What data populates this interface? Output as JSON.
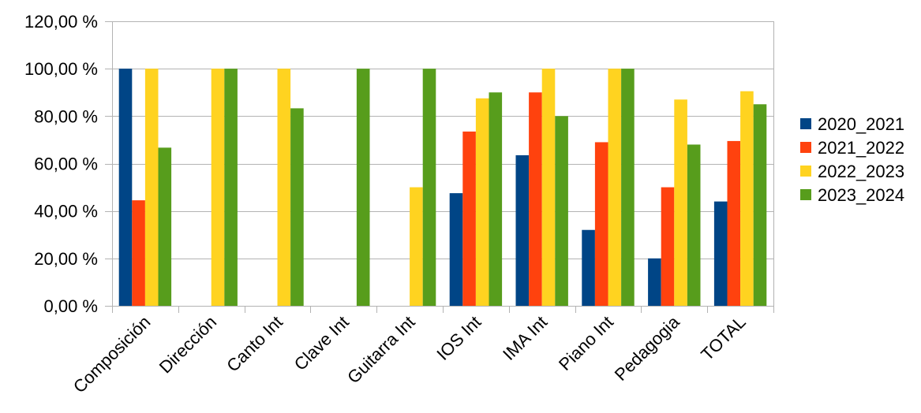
{
  "chart_data": {
    "type": "bar",
    "title": "",
    "xlabel": "",
    "ylabel": "",
    "categories": [
      "Composición",
      "Dirección",
      "Canto Int",
      "Clave Int",
      "Guitarra Int",
      "IOS Int",
      "IMA Int",
      "Piano Int",
      "Pedagogia",
      "TOTAL"
    ],
    "series": [
      {
        "name": "2020_2021",
        "color": "#004586",
        "values": [
          100,
          null,
          null,
          null,
          null,
          47.5,
          63.5,
          32,
          20,
          44
        ]
      },
      {
        "name": "2021_2022",
        "color": "#ff420e",
        "values": [
          44.5,
          null,
          null,
          null,
          null,
          73.5,
          90,
          69,
          50,
          69.5
        ]
      },
      {
        "name": "2022_2023",
        "color": "#ffd320",
        "values": [
          100,
          100,
          100,
          null,
          50,
          87.5,
          100,
          100,
          87,
          90.5
        ]
      },
      {
        "name": "2023_2024",
        "color": "#579d1c",
        "values": [
          66.7,
          100,
          83.3,
          100,
          100,
          90,
          80,
          100,
          68,
          85
        ]
      }
    ],
    "ylim": [
      0,
      120
    ],
    "yticks": [
      0,
      20,
      40,
      60,
      80,
      100,
      120
    ],
    "ytick_labels": [
      "0,00 %",
      "20,00 %",
      "40,00 %",
      "60,00 %",
      "80,00 %",
      "100,00 %",
      "120,00 %"
    ],
    "grid": true,
    "grid_color": "#b3b3b3",
    "legend_position": "right"
  }
}
